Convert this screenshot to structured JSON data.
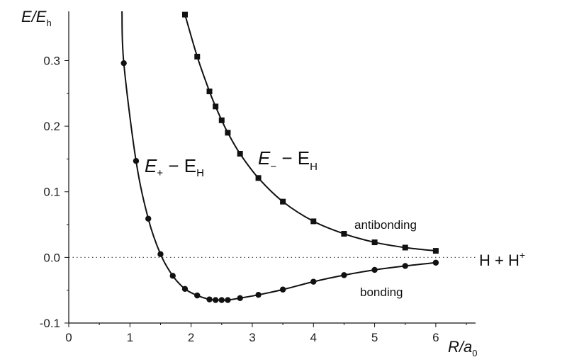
{
  "chart_data": {
    "type": "line",
    "xlim": [
      0,
      6.65
    ],
    "ylim": [
      -0.1,
      0.375
    ],
    "x_ticks": [
      0,
      1,
      2,
      3,
      4,
      5,
      6
    ],
    "y_ticks": [
      -0.1,
      0.0,
      0.1,
      0.2,
      0.3
    ],
    "y_tick_labels": [
      "-0.1",
      "0.0",
      "0.1",
      "0.2",
      "0.3"
    ],
    "x_label": {
      "main": "R/a",
      "sub": "0"
    },
    "y_label": {
      "main": "E/E",
      "sub": "h"
    },
    "grid": false,
    "reference_line": {
      "y": 0.0,
      "style": "dotted",
      "label": "H + H",
      "label_sup": "+"
    },
    "series": [
      {
        "id": "bonding",
        "marker": "circle",
        "label_main": "E",
        "label_sub": "+",
        "label_rest": " − E",
        "label_rest_sub": "H",
        "annotation": "bonding",
        "curve_start": [
          0.87,
          0.375
        ],
        "x": [
          0.9,
          1.1,
          1.3,
          1.5,
          1.7,
          1.9,
          2.1,
          2.3,
          2.4,
          2.5,
          2.6,
          2.8,
          3.1,
          3.5,
          4.0,
          4.5,
          5.0,
          5.5,
          6.0
        ],
        "y": [
          0.296,
          0.147,
          0.059,
          0.005,
          -0.028,
          -0.048,
          -0.058,
          -0.064,
          -0.065,
          -0.065,
          -0.065,
          -0.062,
          -0.057,
          -0.049,
          -0.037,
          -0.027,
          -0.019,
          -0.013,
          -0.008
        ]
      },
      {
        "id": "antibonding",
        "marker": "square",
        "label_main": "E",
        "label_sub": "−",
        "label_rest": " − E",
        "label_rest_sub": "H",
        "annotation": "antibonding",
        "x": [
          1.9,
          2.1,
          2.3,
          2.4,
          2.5,
          2.6,
          2.8,
          3.1,
          3.5,
          4.0,
          4.5,
          5.0,
          5.5,
          6.0
        ],
        "y": [
          0.37,
          0.306,
          0.253,
          0.23,
          0.209,
          0.19,
          0.158,
          0.121,
          0.085,
          0.055,
          0.036,
          0.023,
          0.015,
          0.01
        ]
      }
    ]
  }
}
